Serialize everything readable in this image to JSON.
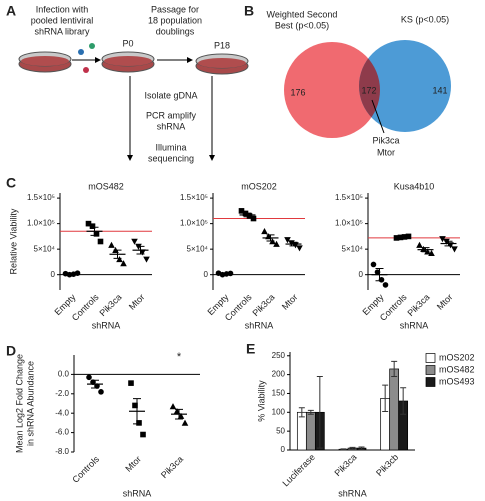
{
  "panel_labels": [
    "A",
    "B",
    "C",
    "D",
    "E"
  ],
  "diagram": {
    "infection": [
      "Infection with",
      "pooled lentiviral",
      "shRNA library"
    ],
    "passage": [
      "Passage for",
      "18 population",
      "doublings"
    ],
    "p0": "P0",
    "p18": "P18",
    "steps": [
      [
        "Isolate gDNA"
      ],
      [
        "PCR amplify",
        "shRNA"
      ],
      [
        "Illumina",
        "sequencing"
      ]
    ]
  },
  "chart_data": [
    {
      "type": "venn",
      "sets": [
        {
          "name": [
            "Weighted Second",
            "Best (p<0.05)"
          ],
          "color": "#f06a70",
          "count": 176
        },
        {
          "name": [
            "KS (p<0.05)"
          ],
          "color": "#4d9bd6",
          "count": 141
        }
      ],
      "overlap": {
        "count": 172,
        "color": "#8e3b4b"
      },
      "annotation": [
        "Pik3ca",
        "Mtor"
      ]
    },
    {
      "type": "dotplot",
      "title": "mOS482",
      "ylabel": [
        "Relative Viability"
      ],
      "xlabel": "shRNA",
      "categories": [
        "Empty",
        "Controls",
        "Pik3ca",
        "Mtor"
      ],
      "markers": [
        "circle",
        "square",
        "triangle",
        "triangle-down"
      ],
      "points": [
        [
          2000,
          0,
          1000,
          3000
        ],
        [
          100000,
          95000,
          80000,
          65000
        ],
        [
          58000,
          48000,
          30000,
          22000
        ],
        [
          65000,
          55000,
          44000,
          30000
        ]
      ],
      "means": [
        1500,
        85000,
        40000,
        48000
      ],
      "sems": [
        700,
        8000,
        8000,
        7500
      ],
      "reference_line": 85000,
      "reference_color": "#e0393e",
      "ylim": [
        -30000,
        160000
      ],
      "yticks": [
        0,
        {
          "value": 50000,
          "label": "5×10⁴"
        },
        {
          "value": 100000,
          "label": "1.0×10⁵"
        },
        {
          "value": 150000,
          "label": "1.5×10⁵"
        }
      ]
    },
    {
      "type": "dotplot",
      "title": "mOS202",
      "xlabel": "shRNA",
      "categories": [
        "Empty",
        "Controls",
        "Pik3ca",
        "Mtor"
      ],
      "markers": [
        "circle",
        "square",
        "triangle",
        "triangle-down"
      ],
      "points": [
        [
          3000,
          0,
          1500,
          2500
        ],
        [
          125000,
          120000,
          115000,
          110000
        ],
        [
          85000,
          75000,
          65000,
          60000
        ],
        [
          68000,
          62000,
          58000,
          52000
        ]
      ],
      "means": [
        1700,
        117000,
        72000,
        60000
      ],
      "sems": [
        700,
        3500,
        6000,
        3500
      ],
      "reference_line": 110000,
      "reference_color": "#e0393e",
      "ylim": [
        -30000,
        160000
      ],
      "yticks": [
        0,
        {
          "value": 50000,
          "label": "5×10⁴"
        },
        {
          "value": 100000,
          "label": "1.0×10⁵"
        },
        {
          "value": 150000,
          "label": "1.5×10⁵"
        }
      ]
    },
    {
      "type": "dotplot",
      "title": "Kusa4b10",
      "xlabel": "shRNA",
      "categories": [
        "Empty",
        "Controls",
        "Pik3ca",
        "Mtor"
      ],
      "markers": [
        "circle",
        "square",
        "triangle",
        "triangle-down"
      ],
      "points": [
        [
          20000,
          5000,
          -10000,
          -20000
        ],
        [
          72000,
          73000,
          74000,
          75000
        ],
        [
          58000,
          50000,
          45000,
          42000
        ],
        [
          70000,
          65000,
          58000,
          50000
        ]
      ],
      "means": [
        0,
        73500,
        49000,
        61000
      ],
      "sems": [
        12000,
        700,
        4000,
        4500
      ],
      "reference_line": 72000,
      "reference_color": "#e0393e",
      "ylim": [
        -30000,
        160000
      ],
      "yticks": [
        0,
        {
          "value": 50000,
          "label": "5×10⁴"
        },
        {
          "value": 100000,
          "label": "1.0×10⁵"
        },
        {
          "value": 150000,
          "label": "1.5×10⁵"
        }
      ]
    },
    {
      "type": "dotplot",
      "ylabel": [
        "Mean Log2 Fold Change",
        "in shRNA Abundance"
      ],
      "xlabel": "shRNA",
      "categories": [
        "Controls",
        "Mtor",
        "Pik3ca"
      ],
      "markers": [
        "circle",
        "square",
        "triangle"
      ],
      "points": [
        [
          -0.3,
          -0.8,
          -1.2,
          -1.8
        ],
        [
          -0.9,
          -3.2,
          -5.0,
          -6.2
        ],
        [
          -3.3,
          -3.8,
          -4.3,
          -5.0
        ]
      ],
      "means": [
        -1.0,
        -3.8,
        -4.1
      ],
      "sems": [
        0.4,
        1.3,
        0.5
      ],
      "significance": [
        null,
        null,
        "*"
      ],
      "ylim": [
        -8,
        2
      ],
      "yticks": [
        {
          "value": 0,
          "label": "0.0"
        },
        {
          "value": -2,
          "label": "-2.0"
        },
        {
          "value": -4,
          "label": "-4.0"
        },
        {
          "value": -6,
          "label": "-6.0"
        },
        {
          "value": -8,
          "label": "-8.0"
        }
      ]
    },
    {
      "type": "bar",
      "ylabel": [
        "% Viability"
      ],
      "xlabel": "shRNA",
      "categories": [
        "Luciferase",
        "Pik3ca",
        "Pik3cb"
      ],
      "series": [
        {
          "name": "mOS202",
          "color": "#ffffff",
          "values": [
            100,
            2,
            137
          ],
          "errors": [
            12,
            1,
            35
          ]
        },
        {
          "name": "mOS482",
          "color": "#8c8c8c",
          "values": [
            100,
            5,
            215
          ],
          "errors": [
            5,
            2,
            20
          ]
        },
        {
          "name": "mOS493",
          "color": "#1a1a1a",
          "values": [
            100,
            5,
            130
          ],
          "errors": [
            95,
            3,
            35
          ]
        }
      ],
      "legend": "top-right",
      "ylim": [
        0,
        260
      ],
      "yticks": [
        0,
        50,
        100,
        150,
        200,
        250
      ]
    }
  ]
}
